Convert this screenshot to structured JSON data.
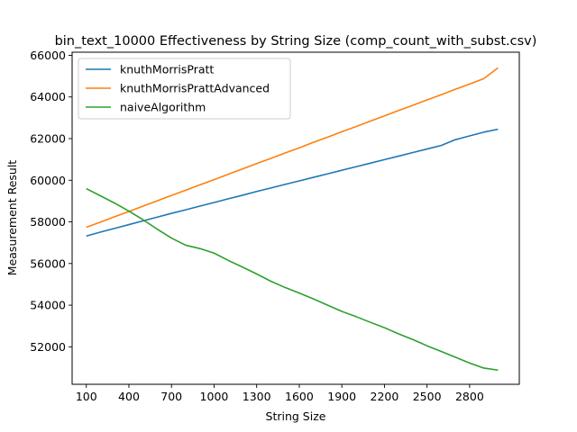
{
  "chart_data": {
    "type": "line",
    "title": "bin_text_10000 Effectiveness by String Size (comp_count_with_subst.csv)",
    "xlabel": "String Size",
    "ylabel": "Measurement Result",
    "xlim": [
      0,
      3150
    ],
    "ylim": [
      50200,
      66150
    ],
    "xticks": [
      100,
      400,
      700,
      1000,
      1300,
      1600,
      1900,
      2200,
      2500,
      2800
    ],
    "yticks": [
      52000,
      54000,
      56000,
      58000,
      60000,
      62000,
      64000,
      66000
    ],
    "ytick_labels": [
      "52000",
      "54000",
      "56000",
      "58000",
      "60000",
      "62000",
      "64000",
      "66000"
    ],
    "grid": false,
    "legend_position": "top-left",
    "x": [
      100,
      200,
      300,
      400,
      500,
      600,
      700,
      800,
      900,
      1000,
      1100,
      1200,
      1300,
      1400,
      1500,
      1600,
      1700,
      1800,
      1900,
      2000,
      2100,
      2200,
      2300,
      2400,
      2500,
      2600,
      2700,
      2800,
      2900,
      3000
    ],
    "series": [
      {
        "name": "knuthMorrisPratt",
        "color": "#1f77b4",
        "values": [
          57320,
          57510,
          57690,
          57870,
          58050,
          58230,
          58410,
          58580,
          58760,
          58930,
          59110,
          59280,
          59460,
          59630,
          59800,
          59970,
          60140,
          60310,
          60480,
          60650,
          60820,
          60990,
          61160,
          61330,
          61500,
          61670,
          61950,
          62130,
          62310,
          62450
        ]
      },
      {
        "name": "knuthMorrisPrattAdvanced",
        "color": "#ff7f0e",
        "values": [
          57740,
          57990,
          58250,
          58500,
          58760,
          59010,
          59270,
          59520,
          59780,
          60030,
          60290,
          60540,
          60800,
          61050,
          61310,
          61560,
          61820,
          62070,
          62330,
          62580,
          62840,
          63090,
          63350,
          63600,
          63860,
          64110,
          64370,
          64620,
          64880,
          65400
        ]
      },
      {
        "name": "naiveAlgorithm",
        "color": "#2ca02c",
        "values": [
          59600,
          59250,
          58900,
          58520,
          58100,
          57650,
          57220,
          56880,
          56720,
          56500,
          56150,
          55830,
          55500,
          55150,
          54850,
          54580,
          54300,
          54000,
          53700,
          53450,
          53180,
          52920,
          52620,
          52350,
          52050,
          51780,
          51500,
          51220,
          50980,
          50880
        ]
      }
    ]
  }
}
